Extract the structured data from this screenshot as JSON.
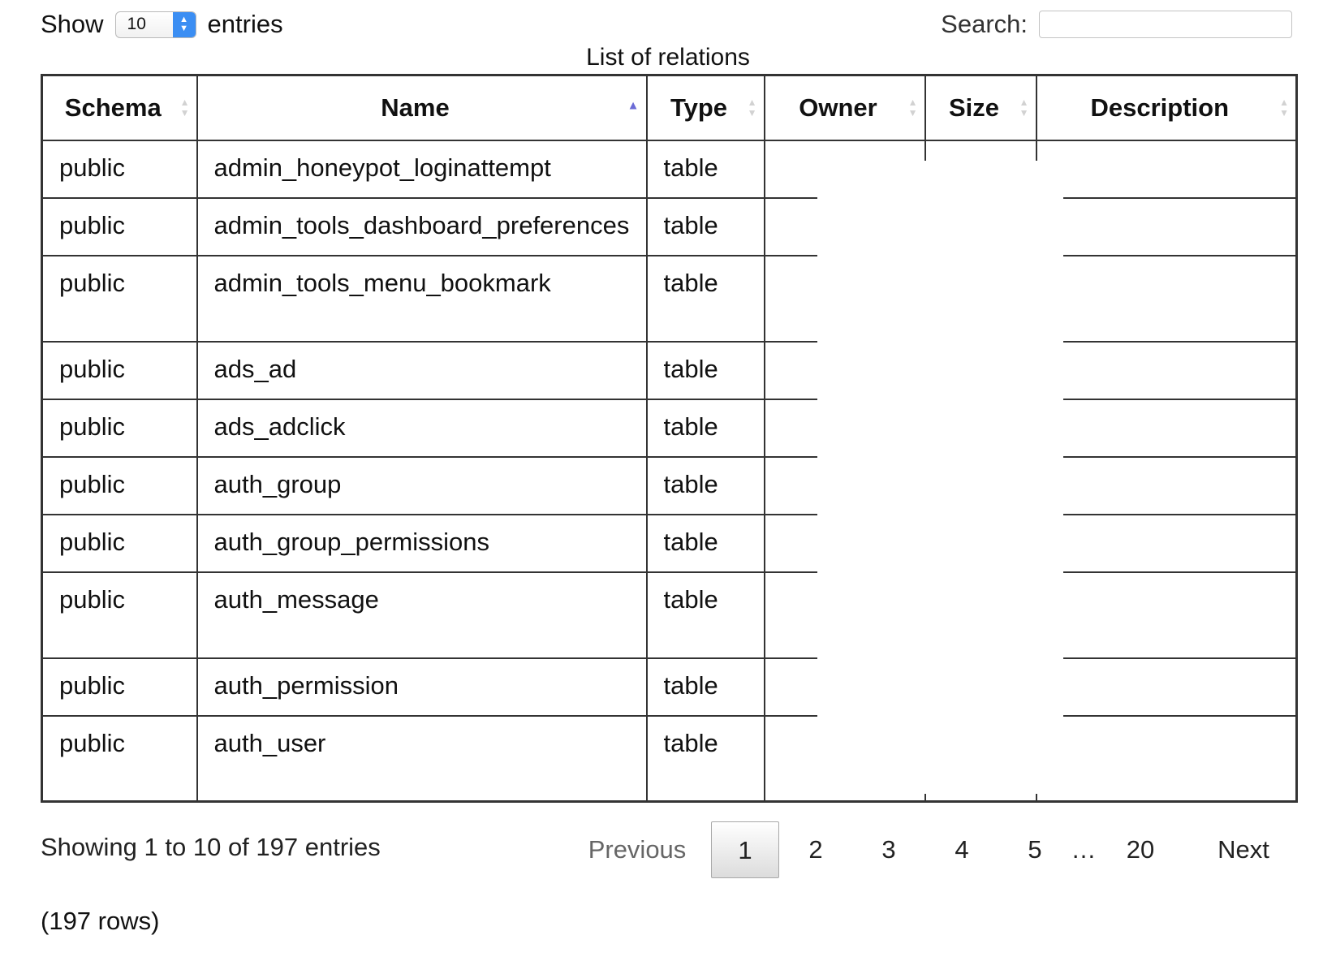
{
  "length_control": {
    "prefix": "Show",
    "selected_value": "10",
    "suffix": "entries"
  },
  "search": {
    "label": "Search:",
    "value": "",
    "placeholder": ""
  },
  "table": {
    "caption": "List of relations",
    "columns": [
      {
        "label": "Schema",
        "sort": "none"
      },
      {
        "label": "Name",
        "sort": "ascending"
      },
      {
        "label": "Type",
        "sort": "none"
      },
      {
        "label": "Owner",
        "sort": "none"
      },
      {
        "label": "Size",
        "sort": "none"
      },
      {
        "label": "Description",
        "sort": "none"
      }
    ],
    "rows": [
      {
        "schema": "public",
        "name": "admin_honeypot_loginattempt",
        "type": "table",
        "owner": "",
        "size": "",
        "description": ""
      },
      {
        "schema": "public",
        "name": "admin_tools_dashboard_preferences",
        "type": "table",
        "owner": "",
        "size": "",
        "description": ""
      },
      {
        "schema": "public",
        "name": "admin_tools_menu_bookmark",
        "type": "table",
        "owner": "",
        "size": "",
        "description": ""
      },
      {
        "schema": "public",
        "name": "ads_ad",
        "type": "table",
        "owner": "",
        "size": "",
        "description": ""
      },
      {
        "schema": "public",
        "name": "ads_adclick",
        "type": "table",
        "owner": "",
        "size": "",
        "description": ""
      },
      {
        "schema": "public",
        "name": "auth_group",
        "type": "table",
        "owner": "",
        "size": "",
        "description": ""
      },
      {
        "schema": "public",
        "name": "auth_group_permissions",
        "type": "table",
        "owner": "",
        "size": "",
        "description": ""
      },
      {
        "schema": "public",
        "name": "auth_message",
        "type": "table",
        "owner": "",
        "size": "",
        "description": ""
      },
      {
        "schema": "public",
        "name": "auth_permission",
        "type": "table",
        "owner": "",
        "size": "",
        "description": ""
      },
      {
        "schema": "public",
        "name": "auth_user",
        "type": "table",
        "owner": "",
        "size": "",
        "description": ""
      }
    ]
  },
  "info": "Showing 1 to 10 of 197 entries",
  "pagination": {
    "previous": "Previous",
    "pages": [
      "1",
      "2",
      "3",
      "4",
      "5"
    ],
    "ellipsis": "…",
    "last_page": "20",
    "next": "Next",
    "current": "1"
  },
  "row_count": "(197 rows)"
}
